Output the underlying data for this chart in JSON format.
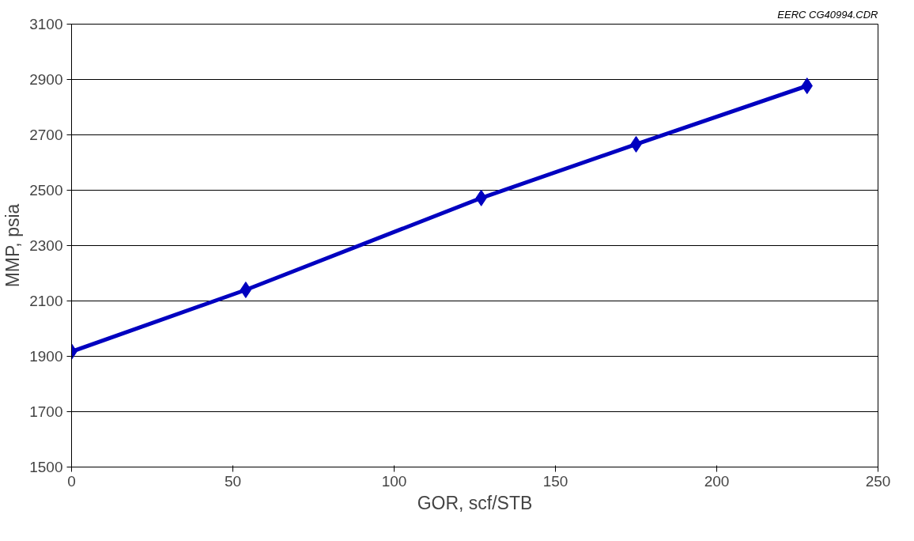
{
  "chart_data": {
    "type": "line",
    "xlabel": "GOR, scf/STB",
    "ylabel": "MMP, psia",
    "annotations": [
      "EERC CG40994.CDR"
    ],
    "x": [
      0,
      54,
      127,
      175,
      228
    ],
    "series": [
      {
        "color": "#0000c0",
        "values": [
          1917,
          2140,
          2472,
          2666,
          2877
        ]
      }
    ],
    "xlim": [
      0,
      250
    ],
    "xticks": [
      0,
      50,
      100,
      150,
      200,
      250
    ],
    "ylim": [
      1500,
      3100
    ],
    "yticks": [
      1500,
      1700,
      1900,
      2100,
      2300,
      2500,
      2700,
      2900,
      3100
    ],
    "grid": "y",
    "marker": "diamond",
    "line_style": "solid"
  }
}
